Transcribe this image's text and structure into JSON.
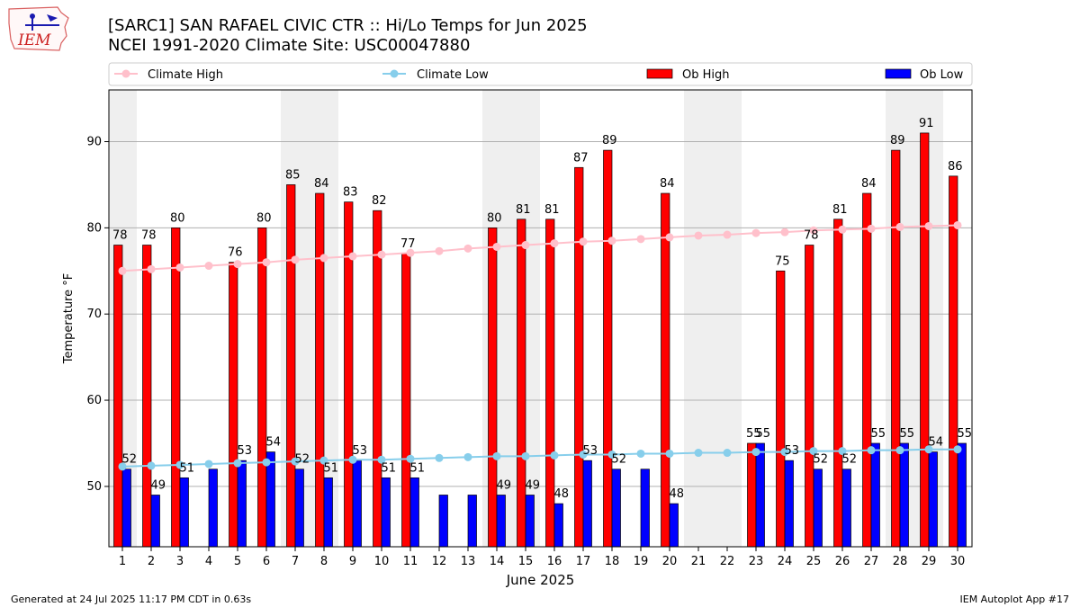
{
  "header": {
    "title": "[SARC1] SAN RAFAEL CIVIC CTR :: Hi/Lo Temps for Jun 2025",
    "subtitle": "NCEI 1991-2020 Climate Site: USC00047880",
    "logo_text": "IEM"
  },
  "footer": {
    "generated": "Generated at 24 Jul 2025 11:17 PM CDT in 0.63s",
    "app": "IEM Autoplot App #17"
  },
  "colors": {
    "ob_high": "#ff0000",
    "ob_low": "#0000ff",
    "climate_high": "#ffc0cb",
    "climate_low": "#87ceeb",
    "weekend_band": "#efefef",
    "grid": "#b0b0b0"
  },
  "chart_data": {
    "type": "bar",
    "xlabel": "June 2025",
    "ylabel": "Temperature °F",
    "ylim": [
      43,
      96
    ],
    "yticks": [
      50,
      60,
      70,
      80,
      90
    ],
    "grid": "horizontal",
    "legend_position": "top",
    "categories": [
      "1",
      "2",
      "3",
      "4",
      "5",
      "6",
      "7",
      "8",
      "9",
      "10",
      "11",
      "12",
      "13",
      "14",
      "15",
      "16",
      "17",
      "18",
      "19",
      "20",
      "21",
      "22",
      "23",
      "24",
      "25",
      "26",
      "27",
      "28",
      "29",
      "30"
    ],
    "weekend_days": [
      1,
      7,
      8,
      14,
      15,
      21,
      22,
      28,
      29
    ],
    "series": [
      {
        "name": "Climate High",
        "kind": "line",
        "values": [
          75.0,
          75.2,
          75.4,
          75.6,
          75.8,
          76.0,
          76.3,
          76.5,
          76.7,
          76.9,
          77.1,
          77.3,
          77.6,
          77.8,
          78.0,
          78.2,
          78.4,
          78.5,
          78.7,
          78.9,
          79.1,
          79.2,
          79.4,
          79.5,
          79.7,
          79.8,
          79.9,
          80.1,
          80.2,
          80.3
        ]
      },
      {
        "name": "Climate Low",
        "kind": "line",
        "values": [
          52.3,
          52.4,
          52.5,
          52.6,
          52.7,
          52.8,
          52.9,
          53.0,
          53.1,
          53.1,
          53.2,
          53.3,
          53.4,
          53.5,
          53.5,
          53.6,
          53.7,
          53.7,
          53.8,
          53.8,
          53.9,
          53.9,
          54.0,
          54.0,
          54.1,
          54.1,
          54.2,
          54.2,
          54.3,
          54.3
        ]
      },
      {
        "name": "Ob High",
        "kind": "bar",
        "values": [
          78,
          78,
          80,
          null,
          76,
          80,
          85,
          84,
          83,
          82,
          77,
          null,
          null,
          80,
          81,
          81,
          87,
          89,
          null,
          84,
          null,
          null,
          55,
          75,
          78,
          81,
          84,
          89,
          91,
          86
        ]
      },
      {
        "name": "Ob Low",
        "kind": "bar",
        "values": [
          52,
          49,
          51,
          52,
          53,
          54,
          52,
          51,
          53,
          51,
          51,
          49,
          49,
          49,
          49,
          48,
          53,
          52,
          52,
          48,
          null,
          null,
          55,
          53,
          52,
          52,
          55,
          55,
          54,
          55
        ]
      }
    ],
    "data_labels": {
      "Ob High": [
        "78",
        "78",
        "80",
        "",
        "76",
        "80",
        "85",
        "84",
        "83",
        "82",
        "77",
        "",
        "",
        "80",
        "81",
        "81",
        "87",
        "89",
        "",
        "84",
        "",
        "",
        "55",
        "75",
        "78",
        "81",
        "84",
        "89",
        "91",
        "86"
      ],
      "Ob Low": [
        "52",
        "49",
        "51",
        "",
        "53",
        "54",
        "52",
        "51",
        "53",
        "51",
        "51",
        "",
        "",
        "49",
        "49",
        "48",
        "53",
        "52",
        "",
        "48",
        "",
        "",
        "55",
        "53",
        "52",
        "52",
        "55",
        "55",
        "54",
        "55"
      ]
    }
  }
}
